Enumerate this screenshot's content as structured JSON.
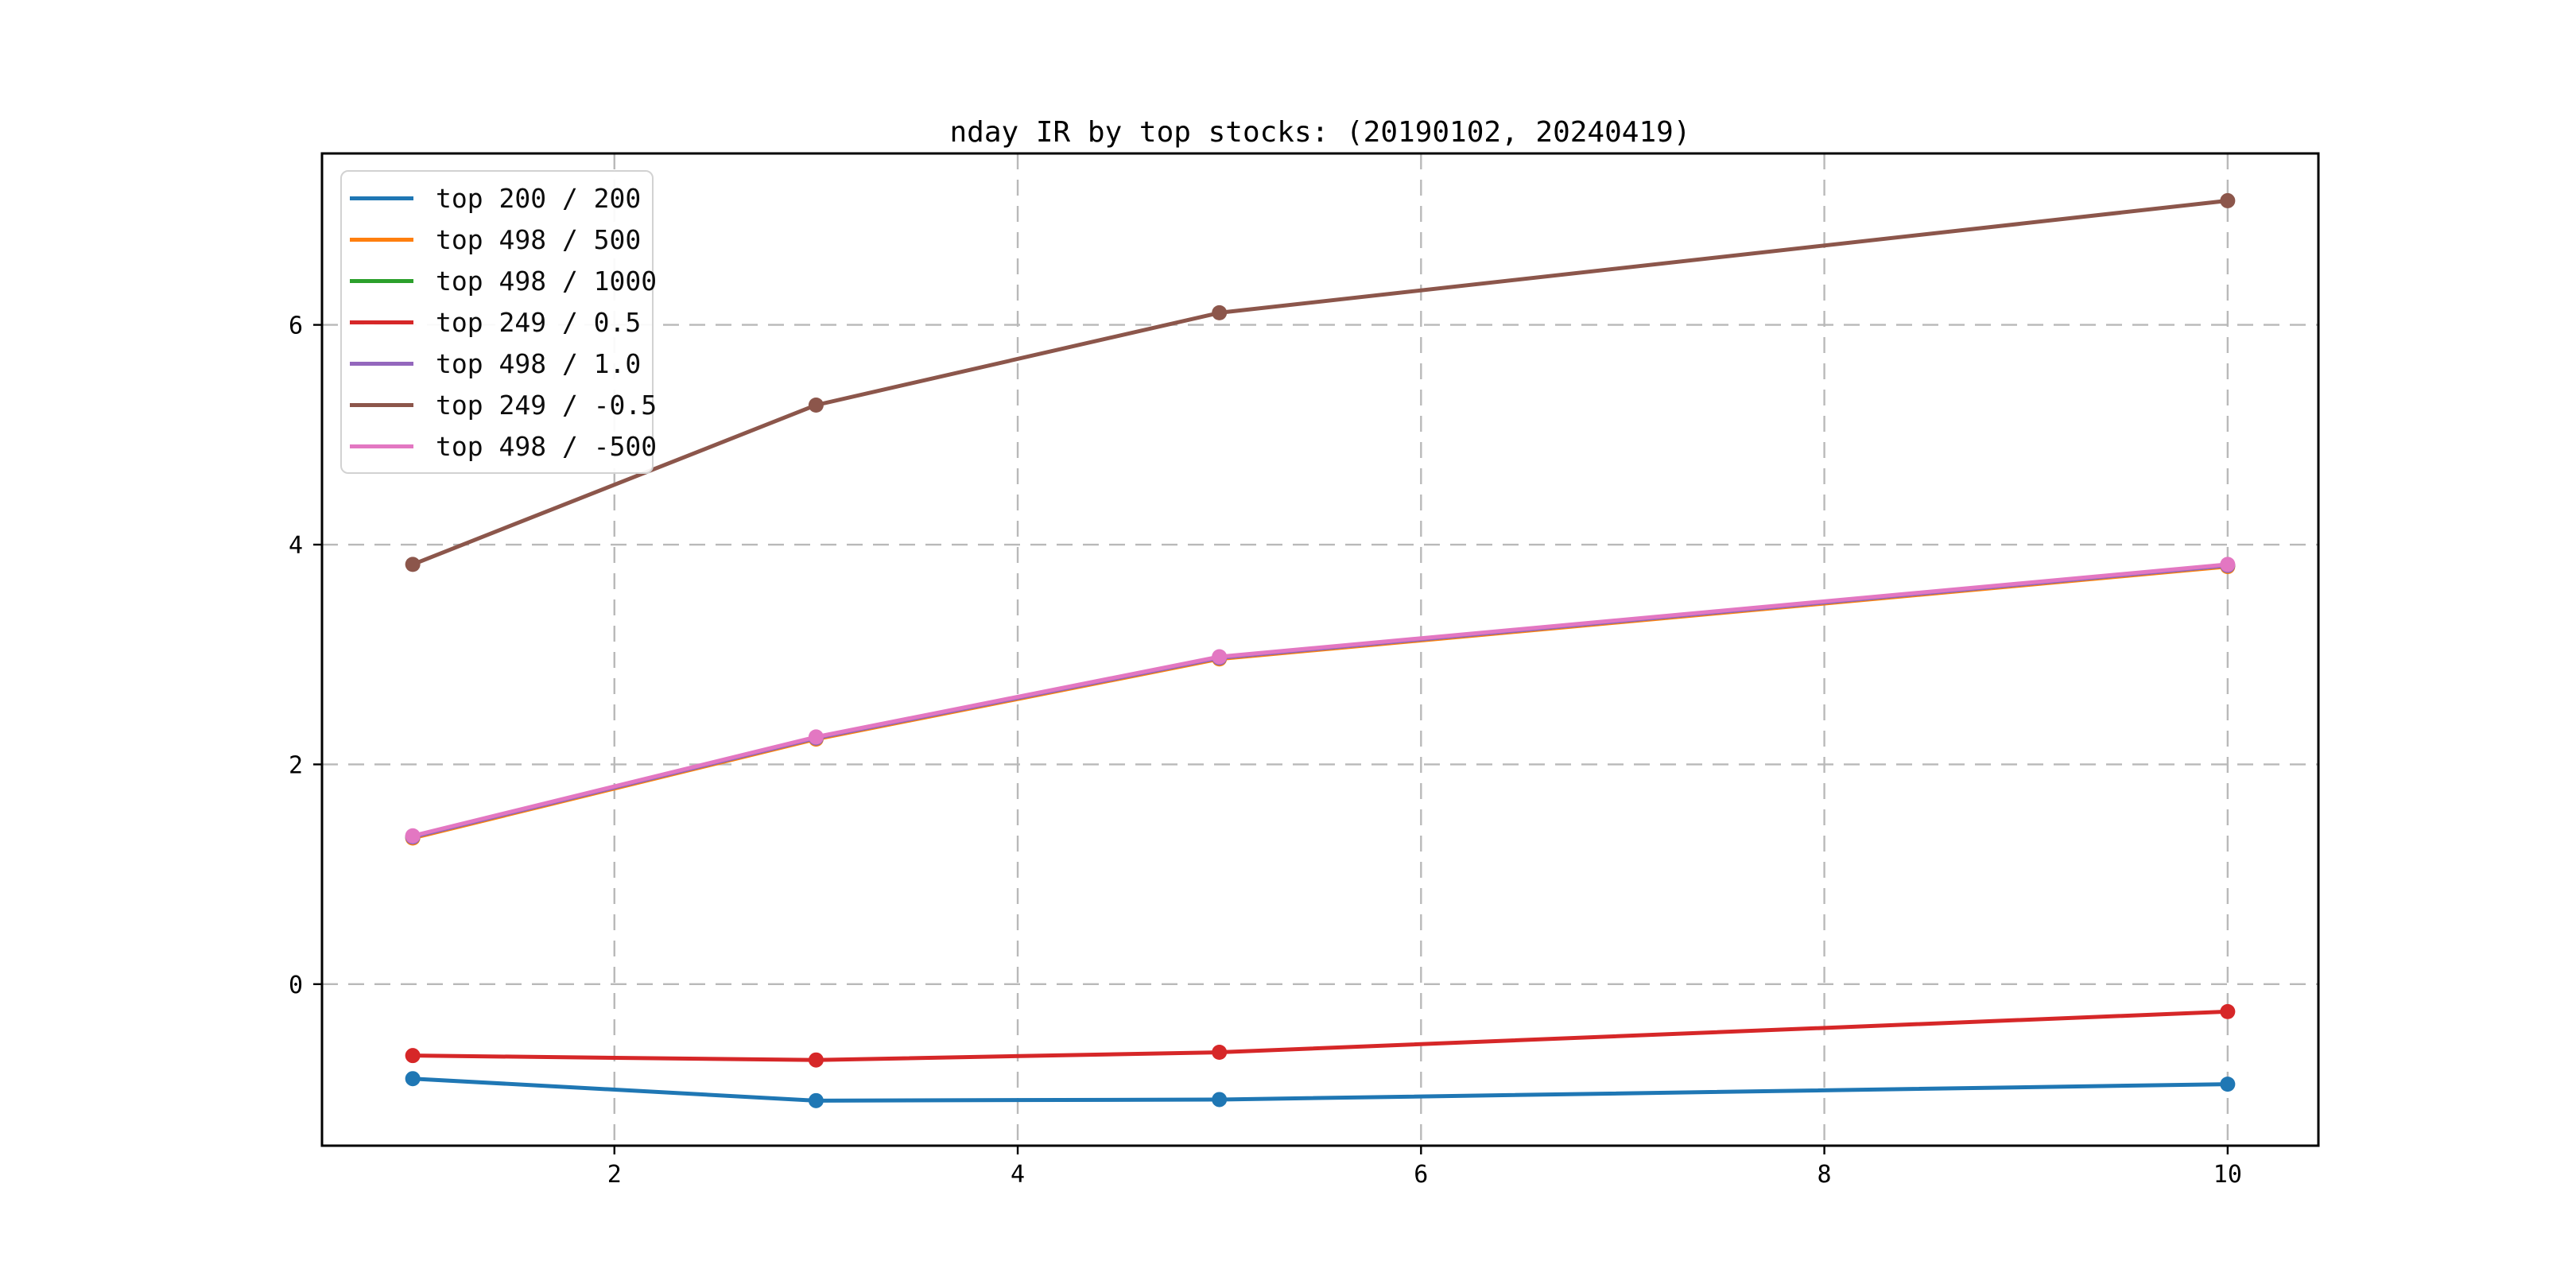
{
  "chart_data": {
    "type": "line",
    "title": "nday IR by top stocks: (20190102, 20240419)",
    "xlabel": "",
    "ylabel": "",
    "x": [
      1,
      3,
      5,
      10
    ],
    "xlim": [
      0.55,
      10.45
    ],
    "ylim": [
      -1.47,
      7.56
    ],
    "xticks": [
      2,
      4,
      6,
      8,
      10
    ],
    "yticks": [
      0,
      2,
      4,
      6
    ],
    "grid": "dashed",
    "grid_color": "#b9b9b9",
    "legend_position": "upper-left",
    "marker": "circle",
    "series": [
      {
        "name": "top 200 / 200",
        "color": "#1f77b4",
        "values": [
          -0.86,
          -1.06,
          -1.05,
          -0.91
        ]
      },
      {
        "name": "top 498 / 500",
        "color": "#ff7f0e",
        "values": [
          1.33,
          2.23,
          2.96,
          3.8
        ]
      },
      {
        "name": "top 498 / 1000",
        "color": "#2ca02c",
        "values": [
          1.34,
          2.24,
          2.97,
          3.81
        ]
      },
      {
        "name": "top 249 / 0.5",
        "color": "#d62728",
        "values": [
          -0.65,
          -0.69,
          -0.62,
          -0.25
        ]
      },
      {
        "name": "top 498 / 1.0",
        "color": "#9467bd",
        "values": [
          1.34,
          2.24,
          2.97,
          3.81
        ]
      },
      {
        "name": "top 249 / -0.5",
        "color": "#8c564b",
        "values": [
          3.82,
          5.27,
          6.11,
          7.13
        ]
      },
      {
        "name": "top 498 / -500",
        "color": "#e377c2",
        "values": [
          1.35,
          2.25,
          2.98,
          3.82
        ]
      }
    ]
  }
}
